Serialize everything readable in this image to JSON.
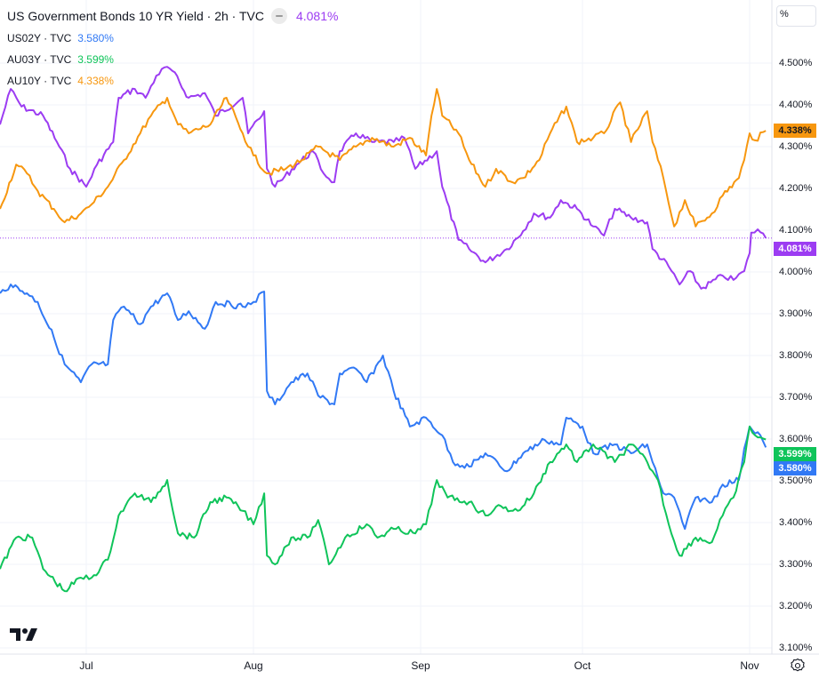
{
  "legend": {
    "title": "US Government Bonds 10 YR Yield · 2h · TVC",
    "title_value": "4.081%",
    "rows": [
      {
        "label": "US02Y · TVC",
        "value": "3.580%"
      },
      {
        "label": "AU03Y · TVC",
        "value": "3.599%"
      },
      {
        "label": "AU10Y · TVC",
        "value": "4.338%"
      }
    ]
  },
  "scale_button": "%",
  "icons": {
    "logo": "tradingview-logo",
    "settings": "gear-icon",
    "hide": "minus-icon"
  },
  "chart_data": {
    "type": "line",
    "title": "US Government Bonds 10 YR Yield · 2h · TVC",
    "x_unit": "days since Jul 1",
    "x_ticks": [
      {
        "label": "Jul",
        "x": 0
      },
      {
        "label": "Aug",
        "x": 31
      },
      {
        "label": "Sep",
        "x": 62
      },
      {
        "label": "Oct",
        "x": 92
      },
      {
        "label": "Nov",
        "x": 123
      }
    ],
    "y_ticks": [
      "4.500%",
      "4.400%",
      "4.300%",
      "4.200%",
      "4.100%",
      "4.000%",
      "3.900%",
      "3.800%",
      "3.700%",
      "3.600%",
      "3.500%",
      "3.400%",
      "3.300%",
      "3.200%",
      "3.100%"
    ],
    "y_tick_values": [
      4.5,
      4.4,
      4.3,
      4.2,
      4.1,
      4.0,
      3.9,
      3.8,
      3.7,
      3.6,
      3.5,
      3.4,
      3.3,
      3.2,
      3.1
    ],
    "ylim": [
      3.1,
      4.5
    ],
    "grid": true,
    "series": [
      {
        "name": "US10Y",
        "color": "#9c3cf2",
        "last": 4.081,
        "last_label": "4.081%",
        "points": [
          [
            -16,
            4.353
          ],
          [
            -14,
            4.438
          ],
          [
            -12,
            4.396
          ],
          [
            -8,
            4.374
          ],
          [
            -5,
            4.3
          ],
          [
            -3,
            4.247
          ],
          [
            0,
            4.204
          ],
          [
            2,
            4.257
          ],
          [
            5,
            4.311
          ],
          [
            6,
            4.417
          ],
          [
            9,
            4.438
          ],
          [
            11,
            4.417
          ],
          [
            13,
            4.47
          ],
          [
            15,
            4.491
          ],
          [
            16,
            4.481
          ],
          [
            19,
            4.417
          ],
          [
            22,
            4.428
          ],
          [
            24,
            4.374
          ],
          [
            29,
            4.417
          ],
          [
            30,
            4.332
          ],
          [
            33,
            4.385
          ],
          [
            33.5,
            4.247
          ],
          [
            35,
            4.204
          ],
          [
            39,
            4.257
          ],
          [
            42,
            4.289
          ],
          [
            44,
            4.236
          ],
          [
            46,
            4.215
          ],
          [
            47,
            4.289
          ],
          [
            50,
            4.332
          ],
          [
            53,
            4.311
          ],
          [
            57,
            4.311
          ],
          [
            59,
            4.321
          ],
          [
            61,
            4.247
          ],
          [
            65,
            4.289
          ],
          [
            66,
            4.204
          ],
          [
            69,
            4.077
          ],
          [
            71,
            4.055
          ],
          [
            74,
            4.023
          ],
          [
            78,
            4.055
          ],
          [
            81,
            4.098
          ],
          [
            83,
            4.14
          ],
          [
            86,
            4.13
          ],
          [
            88,
            4.172
          ],
          [
            91,
            4.151
          ],
          [
            94,
            4.109
          ],
          [
            96,
            4.087
          ],
          [
            98,
            4.151
          ],
          [
            101,
            4.13
          ],
          [
            104,
            4.119
          ],
          [
            105,
            4.055
          ],
          [
            108,
            4.013
          ],
          [
            110,
            3.97
          ],
          [
            112,
            4.002
          ],
          [
            114,
            3.96
          ],
          [
            118,
            3.991
          ],
          [
            120,
            3.981
          ],
          [
            122,
            4.002
          ],
          [
            123,
            4.045
          ],
          [
            123.3,
            4.094
          ],
          [
            124.5,
            4.102
          ],
          [
            126,
            4.081
          ]
        ]
      },
      {
        "name": "AU10Y",
        "color": "#f7970f",
        "last": 4.338,
        "last_label": "4.338%",
        "points": [
          [
            -16,
            4.151
          ],
          [
            -13,
            4.257
          ],
          [
            -11,
            4.236
          ],
          [
            -9,
            4.194
          ],
          [
            -6,
            4.151
          ],
          [
            -4,
            4.119
          ],
          [
            -1,
            4.14
          ],
          [
            1,
            4.162
          ],
          [
            4,
            4.204
          ],
          [
            7,
            4.268
          ],
          [
            10,
            4.332
          ],
          [
            12,
            4.374
          ],
          [
            15,
            4.417
          ],
          [
            17,
            4.353
          ],
          [
            19,
            4.332
          ],
          [
            23,
            4.353
          ],
          [
            26,
            4.417
          ],
          [
            29,
            4.332
          ],
          [
            31,
            4.279
          ],
          [
            33.5,
            4.236
          ],
          [
            37,
            4.247
          ],
          [
            40,
            4.268
          ],
          [
            43,
            4.3
          ],
          [
            47,
            4.268
          ],
          [
            50,
            4.3
          ],
          [
            53,
            4.321
          ],
          [
            57,
            4.3
          ],
          [
            60,
            4.321
          ],
          [
            63,
            4.279
          ],
          [
            64,
            4.374
          ],
          [
            65,
            4.438
          ],
          [
            66,
            4.374
          ],
          [
            69,
            4.332
          ],
          [
            71,
            4.268
          ],
          [
            74,
            4.204
          ],
          [
            76,
            4.247
          ],
          [
            79,
            4.215
          ],
          [
            81,
            4.225
          ],
          [
            84,
            4.268
          ],
          [
            86,
            4.332
          ],
          [
            89,
            4.396
          ],
          [
            91,
            4.311
          ],
          [
            94,
            4.321
          ],
          [
            96,
            4.332
          ],
          [
            99,
            4.406
          ],
          [
            101,
            4.311
          ],
          [
            104,
            4.385
          ],
          [
            105,
            4.311
          ],
          [
            107,
            4.225
          ],
          [
            109,
            4.109
          ],
          [
            111,
            4.172
          ],
          [
            113,
            4.109
          ],
          [
            116,
            4.14
          ],
          [
            118,
            4.183
          ],
          [
            121,
            4.225
          ],
          [
            122,
            4.268
          ],
          [
            123,
            4.332
          ],
          [
            124,
            4.315
          ],
          [
            126,
            4.338
          ]
        ]
      },
      {
        "name": "US02Y",
        "color": "#3179f5",
        "last": 3.58,
        "last_label": "3.580%",
        "points": [
          [
            -16,
            3.949
          ],
          [
            -14,
            3.97
          ],
          [
            -11,
            3.949
          ],
          [
            -9,
            3.928
          ],
          [
            -6,
            3.843
          ],
          [
            -4,
            3.779
          ],
          [
            -1,
            3.736
          ],
          [
            1,
            3.779
          ],
          [
            4,
            3.779
          ],
          [
            5,
            3.885
          ],
          [
            7,
            3.917
          ],
          [
            10,
            3.875
          ],
          [
            12,
            3.917
          ],
          [
            15,
            3.949
          ],
          [
            17,
            3.885
          ],
          [
            19,
            3.906
          ],
          [
            22,
            3.864
          ],
          [
            24,
            3.928
          ],
          [
            29,
            3.917
          ],
          [
            31,
            3.928
          ],
          [
            33,
            3.953
          ],
          [
            33.5,
            3.715
          ],
          [
            35,
            3.683
          ],
          [
            38,
            3.736
          ],
          [
            41,
            3.757
          ],
          [
            43,
            3.704
          ],
          [
            46,
            3.683
          ],
          [
            47,
            3.757
          ],
          [
            50,
            3.768
          ],
          [
            52,
            3.736
          ],
          [
            55,
            3.8
          ],
          [
            57,
            3.715
          ],
          [
            60,
            3.63
          ],
          [
            63,
            3.651
          ],
          [
            66,
            3.609
          ],
          [
            68,
            3.545
          ],
          [
            71,
            3.534
          ],
          [
            74,
            3.566
          ],
          [
            78,
            3.523
          ],
          [
            81,
            3.566
          ],
          [
            85,
            3.598
          ],
          [
            88,
            3.587
          ],
          [
            89,
            3.651
          ],
          [
            92,
            3.63
          ],
          [
            94,
            3.566
          ],
          [
            98,
            3.587
          ],
          [
            101,
            3.566
          ],
          [
            104,
            3.587
          ],
          [
            105,
            3.545
          ],
          [
            107,
            3.47
          ],
          [
            109,
            3.46
          ],
          [
            111,
            3.385
          ],
          [
            113,
            3.46
          ],
          [
            116,
            3.449
          ],
          [
            118,
            3.491
          ],
          [
            121,
            3.502
          ],
          [
            122,
            3.577
          ],
          [
            123,
            3.63
          ],
          [
            125,
            3.609
          ],
          [
            126,
            3.58
          ]
        ]
      },
      {
        "name": "AU03Y",
        "color": "#0fc45a",
        "last": 3.599,
        "last_label": "3.599%",
        "points": [
          [
            -16,
            3.289
          ],
          [
            -13,
            3.364
          ],
          [
            -10,
            3.364
          ],
          [
            -8,
            3.289
          ],
          [
            -4,
            3.236
          ],
          [
            -1,
            3.268
          ],
          [
            1,
            3.268
          ],
          [
            4,
            3.311
          ],
          [
            6,
            3.417
          ],
          [
            9,
            3.47
          ],
          [
            12,
            3.449
          ],
          [
            15,
            3.502
          ],
          [
            17,
            3.374
          ],
          [
            20,
            3.364
          ],
          [
            23,
            3.449
          ],
          [
            26,
            3.46
          ],
          [
            29,
            3.428
          ],
          [
            31,
            3.396
          ],
          [
            33,
            3.47
          ],
          [
            33.5,
            3.321
          ],
          [
            35,
            3.3
          ],
          [
            38,
            3.364
          ],
          [
            41,
            3.364
          ],
          [
            43,
            3.406
          ],
          [
            45,
            3.3
          ],
          [
            48,
            3.364
          ],
          [
            52,
            3.396
          ],
          [
            54,
            3.364
          ],
          [
            57,
            3.385
          ],
          [
            61,
            3.374
          ],
          [
            63,
            3.396
          ],
          [
            65,
            3.502
          ],
          [
            67,
            3.46
          ],
          [
            71,
            3.449
          ],
          [
            74,
            3.417
          ],
          [
            76,
            3.438
          ],
          [
            80,
            3.428
          ],
          [
            83,
            3.47
          ],
          [
            86,
            3.545
          ],
          [
            89,
            3.587
          ],
          [
            91,
            3.545
          ],
          [
            94,
            3.587
          ],
          [
            98,
            3.545
          ],
          [
            101,
            3.587
          ],
          [
            104,
            3.545
          ],
          [
            106,
            3.502
          ],
          [
            108,
            3.396
          ],
          [
            110,
            3.321
          ],
          [
            113,
            3.364
          ],
          [
            116,
            3.353
          ],
          [
            118,
            3.417
          ],
          [
            120,
            3.46
          ],
          [
            122,
            3.545
          ],
          [
            123,
            3.63
          ],
          [
            124,
            3.609
          ],
          [
            126,
            3.599
          ]
        ]
      }
    ]
  }
}
